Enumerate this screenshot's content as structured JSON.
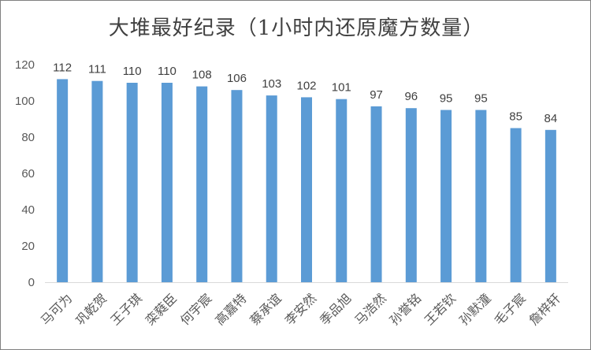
{
  "chart_data": {
    "type": "bar",
    "title": "大堆最好纪录（1小时内还原魔方数量）",
    "categories": [
      "马可为",
      "巩乾贺",
      "王子琪",
      "栾蕤臣",
      "何宇宸",
      "高嘉特",
      "蔡承谊",
      "李安然",
      "季品旭",
      "马浩然",
      "孙誉铭",
      "王若钦",
      "孙默潼",
      "毛子宸",
      "詹梓轩"
    ],
    "values": [
      112,
      111,
      110,
      110,
      108,
      106,
      103,
      102,
      101,
      97,
      96,
      95,
      95,
      85,
      84
    ],
    "xlabel": "",
    "ylabel": "",
    "ylim": [
      0,
      120
    ],
    "yticks": [
      0,
      20,
      40,
      60,
      80,
      100,
      120
    ],
    "grid": false,
    "legend": "none",
    "bar_color": "#5B9BD5",
    "axis_color": "#D9D9D9",
    "text_color": "#595959"
  }
}
